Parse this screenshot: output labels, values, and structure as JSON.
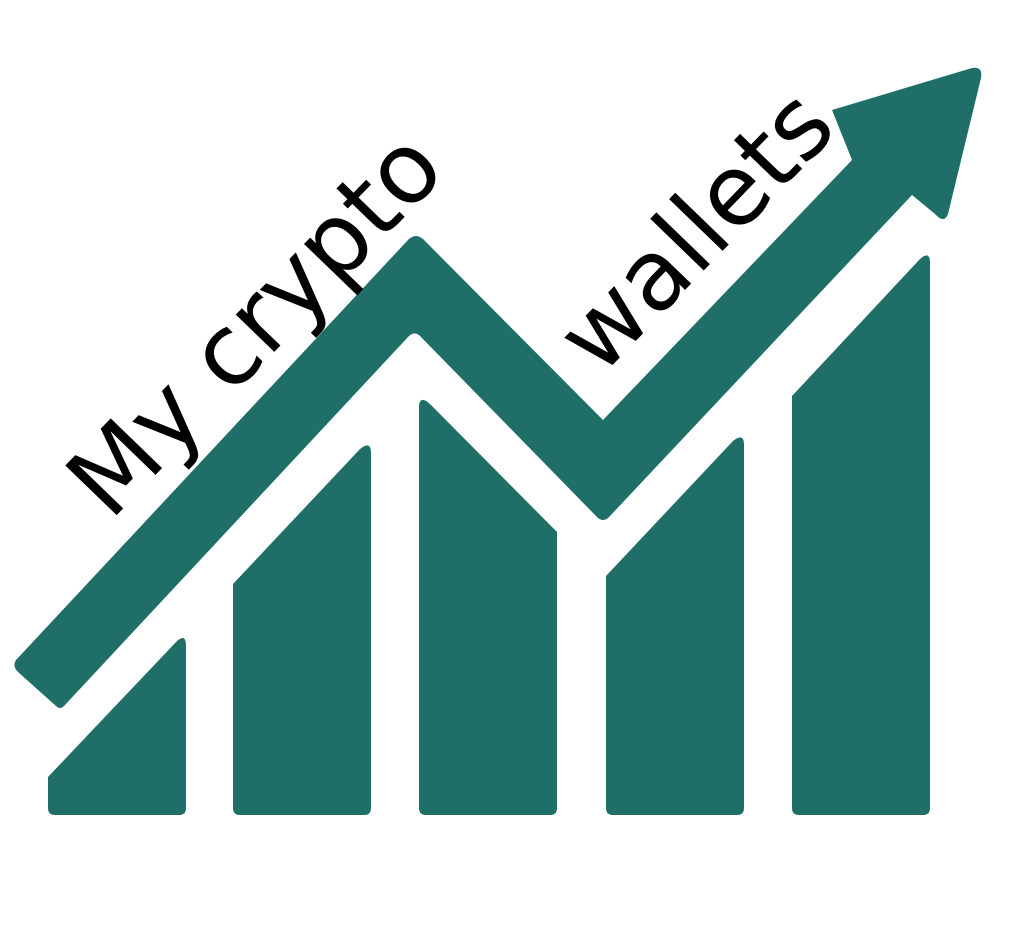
{
  "logo": {
    "line1": "My crypto",
    "line2": "wallets",
    "brand_color": "#1f6f68",
    "text_color": "#000000",
    "background": "#ffffff"
  }
}
